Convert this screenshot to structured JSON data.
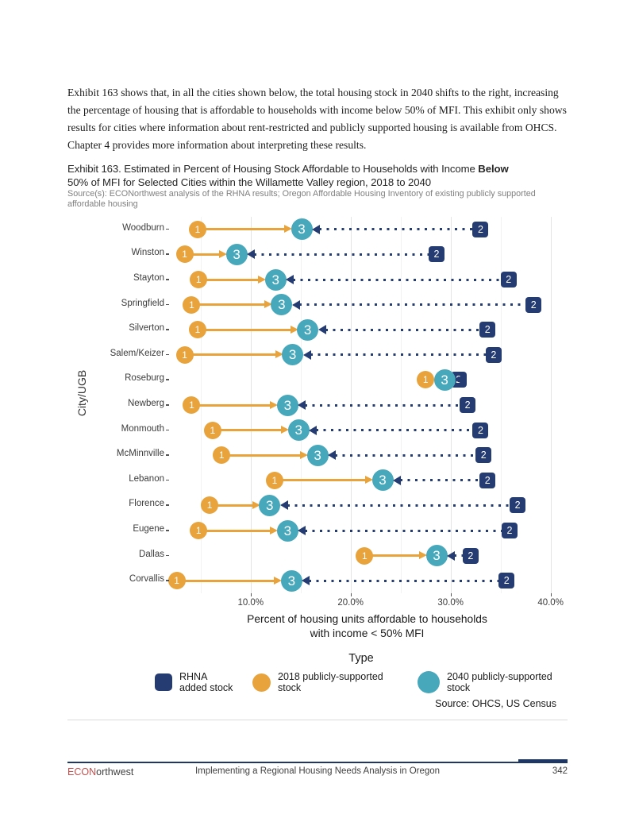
{
  "page": {
    "intro": "Exhibit 163 shows that, in all the cities shown below, the total housing stock in 2040 shifts to the right, increasing the percentage of housing that is affordable to households with income below 50% of MFI. This exhibit only shows results for cities where information about rent-restricted and publicly supported housing is available from OHCS. Chapter 4 provides more information about interpreting these results.",
    "exhibit": {
      "title_prefix": "Exhibit 163. Estimated in Percent of Housing Stock Affordable to Households with Income ",
      "title_bold": "Below",
      "title_line2": "50% of MFI for Selected Cities within the Willamette Valley region, 2018 to 2040",
      "source": "Source(s): ECONorthwest analysis of the RHNA results; Oregon Affordable Housing Inventory of existing publicly supported affordable housing"
    },
    "footer": {
      "brand_red": "ECON",
      "brand_dark": "orthwest",
      "center_text": "Implementing a Regional Housing Needs Analysis in Oregon",
      "page_number": "342"
    }
  },
  "chart_data": {
    "type": "scatter",
    "subtype": "dumbbell",
    "title": "Estimated in Percent of Housing Stock Affordable to Households with Income Below 50% of MFI for Selected Cities within the Willamette Valley region, 2018 to 2040",
    "xlabel_line1": "Percent of housing units affordable to households",
    "xlabel_line2": "with income < 50% MFI",
    "ylabel": "City/UGB",
    "x_ticks": [
      "10.0%",
      "20.0%",
      "30.0%",
      "40.0%"
    ],
    "x_tick_values": [
      10,
      20,
      30,
      40
    ],
    "grid_values": [
      5,
      10,
      15,
      20,
      25,
      30,
      35,
      40
    ],
    "xlim": [
      2,
      41.3
    ],
    "grid": "vertical-only",
    "legend_title": "Type",
    "legend_position": "bottom",
    "marker_labels": {
      "rhna_added": "2",
      "stock_2018": "1",
      "stock_2040": "3"
    },
    "colors": {
      "rhna_added": "#253C72",
      "stock_2018": "#E8A33C",
      "stock_2040": "#47A8BB"
    },
    "legend": [
      {
        "key": "rhna_added",
        "label": "RHNA added stock",
        "shape": "square"
      },
      {
        "key": "stock_2018",
        "label": "2018 publicly-supported stock",
        "shape": "circle"
      },
      {
        "key": "stock_2040",
        "label": "2040 publicly-supported stock",
        "shape": "circle"
      }
    ],
    "source_note": "Source: OHCS, US Census",
    "rows": [
      {
        "city": "Woodburn",
        "stock_2018": 4.7,
        "stock_2040": 15.1,
        "rhna_added": 33.0
      },
      {
        "city": "Winston",
        "stock_2018": 3.4,
        "stock_2040": 8.6,
        "rhna_added": 28.6
      },
      {
        "city": "Stayton",
        "stock_2018": 4.8,
        "stock_2040": 12.5,
        "rhna_added": 35.8
      },
      {
        "city": "Springfield",
        "stock_2018": 4.1,
        "stock_2040": 13.1,
        "rhna_added": 38.3
      },
      {
        "city": "Silverton",
        "stock_2018": 4.7,
        "stock_2040": 15.7,
        "rhna_added": 33.7
      },
      {
        "city": "Salem/Keizer",
        "stock_2018": 3.4,
        "stock_2040": 14.2,
        "rhna_added": 34.3
      },
      {
        "city": "Roseburg",
        "stock_2018": 27.5,
        "stock_2040": 29.4,
        "rhna_added": 30.8
      },
      {
        "city": "Newberg",
        "stock_2018": 4.1,
        "stock_2040": 13.7,
        "rhna_added": 31.7
      },
      {
        "city": "Monmouth",
        "stock_2018": 6.2,
        "stock_2040": 14.8,
        "rhna_added": 33.0
      },
      {
        "city": "McMinnville",
        "stock_2018": 7.1,
        "stock_2040": 16.7,
        "rhna_added": 33.3
      },
      {
        "city": "Lebanon",
        "stock_2018": 12.4,
        "stock_2040": 23.2,
        "rhna_added": 33.7
      },
      {
        "city": "Florence",
        "stock_2018": 5.9,
        "stock_2040": 11.9,
        "rhna_added": 36.7
      },
      {
        "city": "Eugene",
        "stock_2018": 4.8,
        "stock_2040": 13.7,
        "rhna_added": 35.9
      },
      {
        "city": "Dallas",
        "stock_2018": 21.4,
        "stock_2040": 28.6,
        "rhna_added": 32.0
      },
      {
        "city": "Corvallis",
        "stock_2018": 2.6,
        "stock_2040": 14.1,
        "rhna_added": 35.6
      }
    ]
  }
}
